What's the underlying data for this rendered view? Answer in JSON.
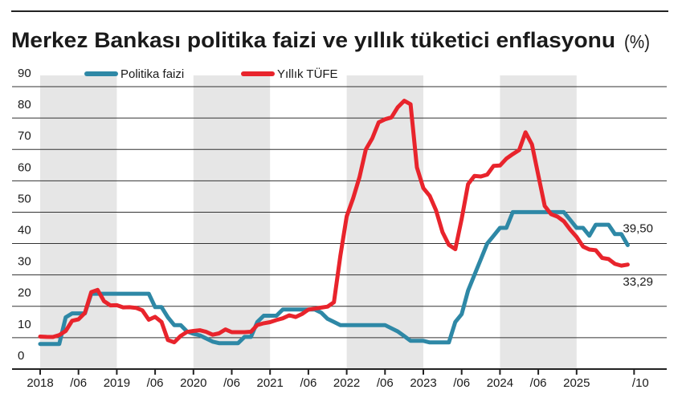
{
  "chart_data": {
    "type": "line",
    "title": "Merkez Bankası politika faizi ve yıllık tüketici enflasyonu",
    "title_unit": "(%)",
    "x": [
      0,
      1,
      2,
      3,
      4,
      5,
      6,
      7,
      8,
      9,
      10,
      11,
      12,
      13,
      14,
      15,
      16,
      17,
      18,
      19,
      20,
      21,
      22,
      23,
      24,
      25,
      26,
      27,
      28,
      29,
      30,
      31,
      32,
      33,
      34,
      35,
      36,
      37,
      38,
      39,
      40,
      41,
      42,
      43,
      44,
      45,
      46,
      47,
      48,
      49,
      50,
      51,
      52,
      53,
      54,
      55,
      56,
      57,
      58,
      59,
      60,
      61,
      62,
      63,
      64,
      65,
      66,
      67,
      68,
      69,
      70,
      71,
      72,
      73,
      74,
      75,
      76,
      77,
      78,
      79,
      80,
      81,
      82,
      83,
      84,
      85,
      86,
      87,
      88,
      89,
      90,
      91,
      92
    ],
    "xlim": [
      0,
      93
    ],
    "xticks": [
      {
        "value": 0,
        "label": "2018"
      },
      {
        "value": 6,
        "label": "/06"
      },
      {
        "value": 12,
        "label": "2019"
      },
      {
        "value": 18,
        "label": "/06"
      },
      {
        "value": 24,
        "label": "2020"
      },
      {
        "value": 30,
        "label": "/06"
      },
      {
        "value": 36,
        "label": "2021"
      },
      {
        "value": 42,
        "label": "/06"
      },
      {
        "value": 48,
        "label": "2022"
      },
      {
        "value": 54,
        "label": "/06"
      },
      {
        "value": 60,
        "label": "2023"
      },
      {
        "value": 66,
        "label": "/06"
      },
      {
        "value": 72,
        "label": "2024"
      },
      {
        "value": 78,
        "label": "/06"
      },
      {
        "value": 84,
        "label": "2025"
      },
      {
        "value": 93,
        "label": "/10"
      }
    ],
    "ylim": [
      0,
      90
    ],
    "yticks": [
      0,
      10,
      20,
      30,
      40,
      50,
      60,
      70,
      80,
      90
    ],
    "grid": true,
    "legend": "top",
    "series": [
      {
        "name": "Politika faizi",
        "color": "#2e88a6",
        "values": [
          8,
          8,
          8,
          8,
          16.5,
          17.75,
          17.75,
          17.75,
          24,
          24,
          24,
          24,
          24,
          24,
          24,
          24,
          24,
          24,
          19.75,
          19.75,
          16.5,
          14,
          14,
          12,
          11.25,
          10.75,
          9.75,
          8.75,
          8.25,
          8.25,
          8.25,
          8.25,
          10.25,
          10.25,
          15,
          17,
          17,
          17,
          19,
          19,
          19,
          19,
          19,
          19,
          18,
          16,
          15,
          14,
          14,
          14,
          14,
          14,
          14,
          14,
          14,
          13,
          12,
          10.5,
          9,
          9,
          9,
          8.5,
          8.5,
          8.5,
          8.5,
          15,
          17.5,
          25,
          30,
          35,
          40,
          42.5,
          45,
          45,
          50,
          50,
          50,
          50,
          50,
          50,
          50,
          50,
          50,
          47.5,
          45,
          45,
          42.5,
          46,
          46,
          46,
          43,
          43,
          39.5
        ],
        "last_value_label": "39,50"
      },
      {
        "name": "Yıllık TÜFE",
        "color": "#e8242c",
        "values": [
          10.35,
          10.26,
          10.23,
          10.85,
          12.15,
          15.39,
          15.85,
          17.9,
          24.52,
          25.24,
          21.62,
          20.3,
          20.35,
          19.67,
          19.71,
          19.5,
          18.71,
          15.72,
          16.65,
          15.01,
          9.26,
          8.55,
          10.56,
          11.84,
          12.15,
          12.37,
          11.86,
          10.94,
          11.39,
          12.62,
          11.76,
          11.77,
          11.75,
          11.89,
          14.03,
          14.6,
          14.97,
          15.61,
          16.19,
          17.14,
          16.59,
          17.53,
          18.95,
          19.25,
          19.58,
          19.89,
          21.31,
          36.08,
          48.69,
          54.44,
          61.14,
          69.97,
          73.5,
          78.62,
          79.6,
          80.21,
          83.45,
          85.51,
          84.39,
          64.27,
          57.68,
          55.18,
          50.51,
          43.68,
          39.59,
          38.21,
          47.83,
          58.94,
          61.53,
          61.36,
          61.98,
          64.77,
          64.86,
          67.07,
          68.5,
          69.8,
          75.45,
          71.6,
          61.78,
          51.97,
          49.38,
          48.58,
          47.09,
          44.38,
          42.12,
          39.05,
          38.1,
          37.86,
          35.41,
          35.05,
          33.52,
          32.95,
          33.29
        ],
        "last_value_label": "33,29"
      }
    ]
  }
}
